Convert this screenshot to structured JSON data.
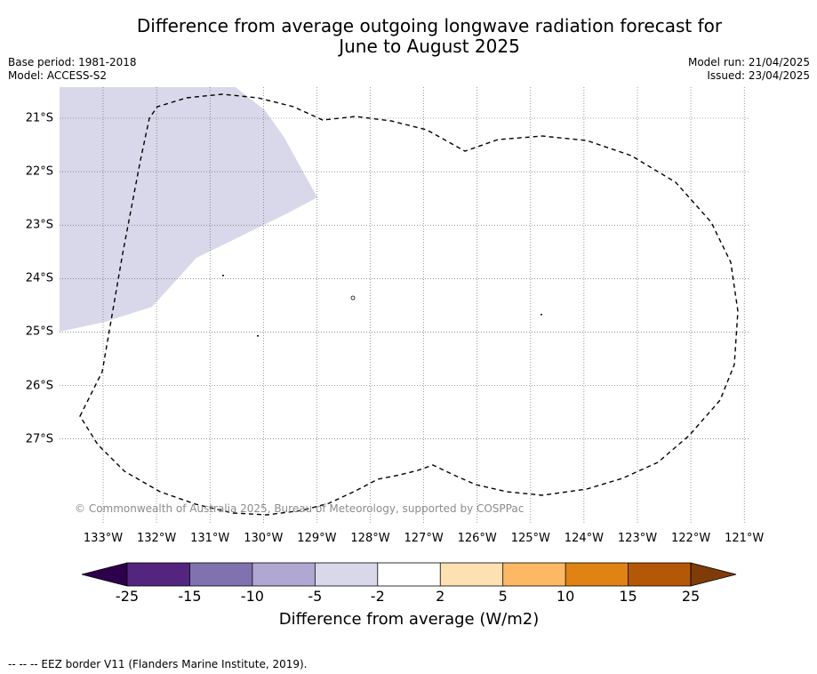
{
  "title": {
    "line1": "Difference from average outgoing longwave radiation forecast for",
    "line2": "June to August 2025"
  },
  "meta": {
    "base_period": "Base period: 1981-2018",
    "model": "Model: ACCESS-S2",
    "model_run": "Model run: 21/04/2025",
    "issued": "Issued: 23/04/2025"
  },
  "map": {
    "latitudes": [
      "21°S",
      "22°S",
      "23°S",
      "24°S",
      "25°S",
      "26°S",
      "27°S"
    ],
    "longitudes": [
      "133°W",
      "132°W",
      "131°W",
      "130°W",
      "129°W",
      "128°W",
      "127°W",
      "126°W",
      "125°W",
      "124°W",
      "123°W",
      "122°W",
      "121°W"
    ],
    "copyright": "© Commonwealth of Australia 2025, Bureau of Meteorology, supported by COSPPac",
    "anomaly_region_color": "#d8d8ea",
    "eez_border_color": "#000000"
  },
  "colorbar": {
    "ticks": [
      "-25",
      "-15",
      "-10",
      "-5",
      "-2",
      "2",
      "5",
      "10",
      "15",
      "25"
    ],
    "colors": [
      "#53257f",
      "#8072ae",
      "#b0a8d2",
      "#d8d8ea",
      "#ffffff",
      "#fee1b3",
      "#fdb863",
      "#e08214",
      "#b35806"
    ],
    "under_color": "#2d004b",
    "over_color": "#7f3b08",
    "label": "Difference from average (W/m2)"
  },
  "footer": {
    "legend": "--  --  -- EEZ border V11 (Flanders Marine Institute, 2019)."
  }
}
